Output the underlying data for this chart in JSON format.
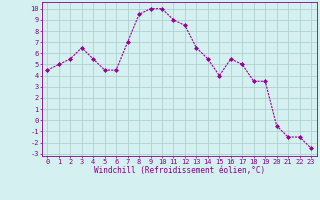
{
  "x": [
    0,
    1,
    2,
    3,
    4,
    5,
    6,
    7,
    8,
    9,
    10,
    11,
    12,
    13,
    14,
    15,
    16,
    17,
    18,
    19,
    20,
    21,
    22,
    23
  ],
  "y": [
    4.5,
    5.0,
    5.5,
    6.5,
    5.5,
    4.5,
    4.5,
    7.0,
    9.5,
    10.0,
    10.0,
    9.0,
    8.5,
    6.5,
    5.5,
    4.0,
    5.5,
    5.0,
    3.5,
    3.5,
    -0.5,
    -1.5,
    -1.5,
    -2.5
  ],
  "line_color": "#990099",
  "marker": "D",
  "marker_size": 2,
  "bg_color": "#d4f0f0",
  "grid_color": "#aacccc",
  "xlabel": "Windchill (Refroidissement éolien,°C)",
  "ylabel_ticks": [
    "-3",
    "-2",
    "-1",
    "0",
    "1",
    "2",
    "3",
    "4",
    "5",
    "6",
    "7",
    "8",
    "9",
    "10"
  ],
  "ytick_vals": [
    -3,
    -2,
    -1,
    0,
    1,
    2,
    3,
    4,
    5,
    6,
    7,
    8,
    9,
    10
  ],
  "ylim": [
    -3.2,
    10.6
  ],
  "xlim": [
    -0.5,
    23.5
  ],
  "xtick_vals": [
    0,
    1,
    2,
    3,
    4,
    5,
    6,
    7,
    8,
    9,
    10,
    11,
    12,
    13,
    14,
    15,
    16,
    17,
    18,
    19,
    20,
    21,
    22,
    23
  ],
  "font_color": "#880088",
  "label_fontsize": 5.5,
  "tick_fontsize": 5.0
}
